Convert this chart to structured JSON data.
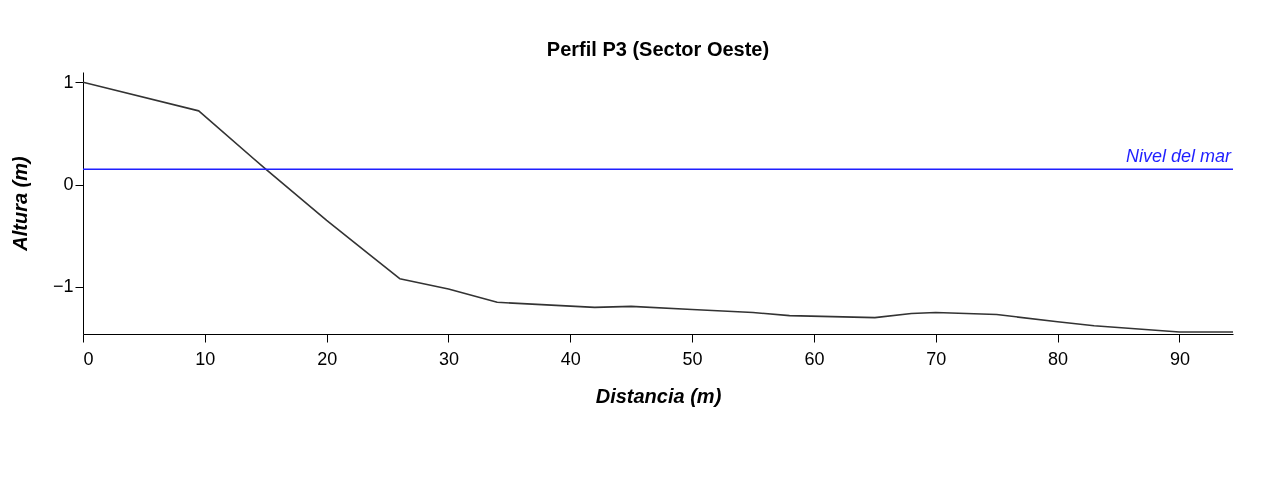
{
  "chart_data": {
    "type": "line",
    "title": "Perfil P3 (Sector Oeste)",
    "xlabel": "Distancia (m)",
    "ylabel": "Altura (m)",
    "x": [
      0,
      9.5,
      15,
      20,
      26,
      30,
      34,
      42,
      45,
      50,
      55,
      58,
      65,
      68,
      70,
      75,
      80,
      83,
      90,
      94.4
    ],
    "series": [
      {
        "color": "#333333",
        "values": [
          1.0,
          0.72,
          0.15,
          -0.35,
          -0.92,
          -1.02,
          -1.15,
          -1.2,
          -1.19,
          -1.22,
          -1.25,
          -1.28,
          -1.3,
          -1.26,
          -1.25,
          -1.27,
          -1.34,
          -1.38,
          -1.44,
          -1.44
        ]
      }
    ],
    "xlim": [
      0,
      94.4
    ],
    "xticks": [
      0,
      10,
      20,
      30,
      40,
      50,
      60,
      70,
      80,
      90
    ],
    "ylim": [
      -1.46,
      1.1
    ],
    "yticks": [
      -1,
      0,
      1
    ],
    "ref_lines": [
      {
        "axis": "y",
        "value": 0.15,
        "label": "Nivel del mar",
        "color": "#1f1fff"
      }
    ],
    "grid": false,
    "marker": "none",
    "line_style": "solid"
  }
}
